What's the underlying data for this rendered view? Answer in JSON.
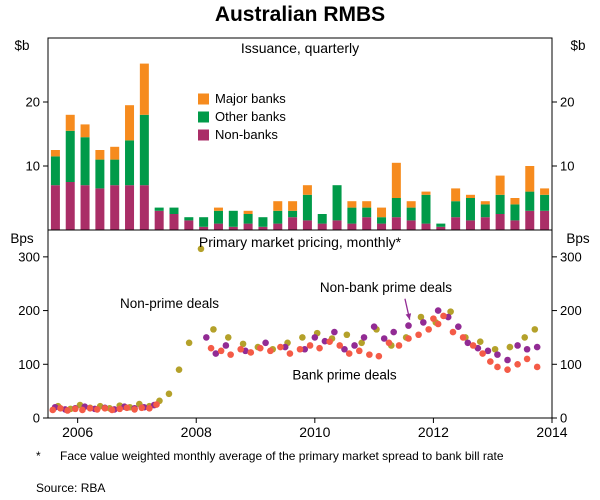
{
  "page": {
    "title": "Australian RMBS",
    "footnote_marker": "*",
    "footnote_text": "Face value weighted monthly average of the primary market spread to bank bill rate",
    "source": "Source: RBA"
  },
  "x_axis": {
    "min": 2005.5,
    "max": 2014,
    "tick_labels": [
      2006,
      2008,
      2010,
      2012,
      2014
    ]
  },
  "chart_data": [
    {
      "type": "bar",
      "stacked": true,
      "panel": "top",
      "panel_title": "Issuance, quarterly",
      "unit": "$b",
      "ylim": [
        0,
        30
      ],
      "yticks": [
        10,
        20
      ],
      "legend_order": [
        "Major banks",
        "Other banks",
        "Non-banks"
      ],
      "x_quarters": [
        2005.625,
        2005.875,
        2006.125,
        2006.375,
        2006.625,
        2006.875,
        2007.125,
        2007.375,
        2007.625,
        2007.875,
        2008.125,
        2008.375,
        2008.625,
        2008.875,
        2009.125,
        2009.375,
        2009.625,
        2009.875,
        2010.125,
        2010.375,
        2010.625,
        2010.875,
        2011.125,
        2011.375,
        2011.625,
        2011.875,
        2012.125,
        2012.375,
        2012.625,
        2012.875,
        2013.125,
        2013.375,
        2013.625,
        2013.875
      ],
      "series": [
        {
          "name": "Non-banks",
          "color": "#aa2e67",
          "values": [
            7,
            7.5,
            7,
            6.5,
            7,
            7,
            7,
            3,
            2.5,
            1.5,
            0.5,
            1,
            0.5,
            1,
            0.5,
            1,
            2,
            1.5,
            1,
            1.5,
            1,
            2,
            1,
            2,
            1.5,
            1,
            0.5,
            2,
            1.5,
            2,
            2.5,
            1.5,
            3,
            3
          ]
        },
        {
          "name": "Other banks",
          "color": "#009a49",
          "values": [
            4.5,
            8,
            7.5,
            4.5,
            4,
            7,
            11,
            0.5,
            1,
            0.5,
            1.5,
            2,
            2.5,
            1.5,
            1.5,
            2,
            1,
            4,
            1.5,
            5.5,
            2.5,
            1.5,
            1,
            3,
            2,
            4.5,
            0.5,
            2.5,
            3.5,
            2,
            3,
            2.5,
            3,
            2.5
          ]
        },
        {
          "name": "Major banks",
          "color": "#f68b1e",
          "values": [
            1,
            2.5,
            2,
            1.5,
            2,
            5.5,
            8,
            0,
            0,
            0,
            0,
            0.5,
            0,
            0.5,
            0,
            1.5,
            1.5,
            1.5,
            0,
            0,
            1,
            1,
            1.5,
            5.5,
            1,
            0.5,
            0,
            2,
            0.5,
            0.5,
            3,
            1,
            4,
            1
          ]
        }
      ]
    },
    {
      "type": "scatter",
      "panel": "bottom",
      "panel_title": "Primary market pricing, monthly*",
      "unit": "Bps",
      "ylim": [
        0,
        350
      ],
      "yticks": [
        0,
        100,
        200,
        300
      ],
      "series": [
        {
          "name": "Non-prime deals",
          "color": "#b4a12a",
          "points": [
            [
              2005.67,
              22
            ],
            [
              2005.88,
              17
            ],
            [
              2006.04,
              24
            ],
            [
              2006.21,
              19
            ],
            [
              2006.38,
              22
            ],
            [
              2006.54,
              18
            ],
            [
              2006.71,
              23
            ],
            [
              2006.88,
              20
            ],
            [
              2007.04,
              26
            ],
            [
              2007.21,
              22
            ],
            [
              2007.38,
              32
            ],
            [
              2007.54,
              45
            ],
            [
              2007.71,
              90
            ],
            [
              2007.88,
              140
            ],
            [
              2008.08,
              315
            ],
            [
              2008.29,
              165
            ],
            [
              2008.54,
              150
            ],
            [
              2008.79,
              138
            ],
            [
              2009.04,
              132
            ],
            [
              2009.29,
              128
            ],
            [
              2009.54,
              140
            ],
            [
              2009.79,
              150
            ],
            [
              2010.04,
              158
            ],
            [
              2010.29,
              148
            ],
            [
              2010.54,
              155
            ],
            [
              2010.79,
              140
            ],
            [
              2011.04,
              165
            ],
            [
              2011.29,
              135
            ],
            [
              2011.54,
              150
            ],
            [
              2011.79,
              188
            ],
            [
              2012.04,
              178
            ],
            [
              2012.29,
              198
            ],
            [
              2012.54,
              150
            ],
            [
              2012.79,
              142
            ],
            [
              2013.04,
              128
            ],
            [
              2013.29,
              132
            ],
            [
              2013.54,
              150
            ],
            [
              2013.71,
              165
            ]
          ]
        },
        {
          "name": "Non-bank prime deals",
          "color": "#922b94",
          "points": [
            [
              2005.62,
              20
            ],
            [
              2005.79,
              16
            ],
            [
              2005.96,
              18
            ],
            [
              2006.12,
              21
            ],
            [
              2006.29,
              17
            ],
            [
              2006.46,
              19
            ],
            [
              2006.62,
              16
            ],
            [
              2006.79,
              21
            ],
            [
              2006.96,
              18
            ],
            [
              2007.12,
              20
            ],
            [
              2007.29,
              24
            ],
            [
              2008.17,
              150
            ],
            [
              2008.33,
              120
            ],
            [
              2008.5,
              135
            ],
            [
              2008.83,
              125
            ],
            [
              2009.17,
              140
            ],
            [
              2009.5,
              132
            ],
            [
              2009.83,
              128
            ],
            [
              2010.0,
              150
            ],
            [
              2010.17,
              143
            ],
            [
              2010.33,
              160
            ],
            [
              2010.5,
              128
            ],
            [
              2010.67,
              135
            ],
            [
              2010.83,
              150
            ],
            [
              2011.0,
              170
            ],
            [
              2011.17,
              148
            ],
            [
              2011.33,
              160
            ],
            [
              2011.58,
              172
            ],
            [
              2011.83,
              178
            ],
            [
              2012.08,
              200
            ],
            [
              2012.25,
              188
            ],
            [
              2012.42,
              170
            ],
            [
              2012.58,
              140
            ],
            [
              2012.75,
              130
            ],
            [
              2012.92,
              125
            ],
            [
              2013.08,
              118
            ],
            [
              2013.25,
              108
            ],
            [
              2013.42,
              135
            ],
            [
              2013.58,
              128
            ],
            [
              2013.75,
              132
            ]
          ]
        },
        {
          "name": "Bank prime deals",
          "color": "#f45b47",
          "points": [
            [
              2005.58,
              15
            ],
            [
              2005.71,
              18
            ],
            [
              2005.83,
              14
            ],
            [
              2005.96,
              17
            ],
            [
              2006.08,
              15
            ],
            [
              2006.21,
              18
            ],
            [
              2006.33,
              16
            ],
            [
              2006.46,
              18
            ],
            [
              2006.58,
              15
            ],
            [
              2006.71,
              17
            ],
            [
              2006.83,
              19
            ],
            [
              2006.96,
              16
            ],
            [
              2007.08,
              19
            ],
            [
              2007.21,
              18
            ],
            [
              2007.33,
              25
            ],
            [
              2008.25,
              130
            ],
            [
              2008.42,
              125
            ],
            [
              2008.58,
              118
            ],
            [
              2008.75,
              128
            ],
            [
              2008.92,
              122
            ],
            [
              2009.08,
              130
            ],
            [
              2009.25,
              125
            ],
            [
              2009.42,
              132
            ],
            [
              2009.58,
              120
            ],
            [
              2009.75,
              128
            ],
            [
              2009.92,
              135
            ],
            [
              2010.08,
              130
            ],
            [
              2010.25,
              142
            ],
            [
              2010.42,
              135
            ],
            [
              2010.58,
              120
            ],
            [
              2010.75,
              125
            ],
            [
              2010.92,
              118
            ],
            [
              2011.08,
              115
            ],
            [
              2011.25,
              140
            ],
            [
              2011.42,
              135
            ],
            [
              2011.58,
              148
            ],
            [
              2011.75,
              155
            ],
            [
              2011.92,
              165
            ],
            [
              2012.0,
              185
            ],
            [
              2012.08,
              175
            ],
            [
              2012.17,
              190
            ],
            [
              2012.33,
              160
            ],
            [
              2012.5,
              150
            ],
            [
              2012.67,
              135
            ],
            [
              2012.83,
              120
            ],
            [
              2012.96,
              105
            ],
            [
              2013.08,
              95
            ],
            [
              2013.25,
              90
            ],
            [
              2013.42,
              100
            ],
            [
              2013.58,
              110
            ],
            [
              2013.75,
              95
            ]
          ]
        }
      ],
      "annotations": [
        {
          "text": "Non-prime deals",
          "color": "#b4a12a",
          "x": 2007.55,
          "y": 205
        },
        {
          "text": "Non-bank prime deals",
          "color": "#922b94",
          "x": 2011.2,
          "y": 235,
          "arrow": {
            "from": [
              2011.52,
              222
            ],
            "to": [
              2011.6,
              183
            ]
          }
        },
        {
          "text": "Bank prime deals",
          "color": "#f45b47",
          "x": 2010.5,
          "y": 72
        }
      ]
    }
  ]
}
